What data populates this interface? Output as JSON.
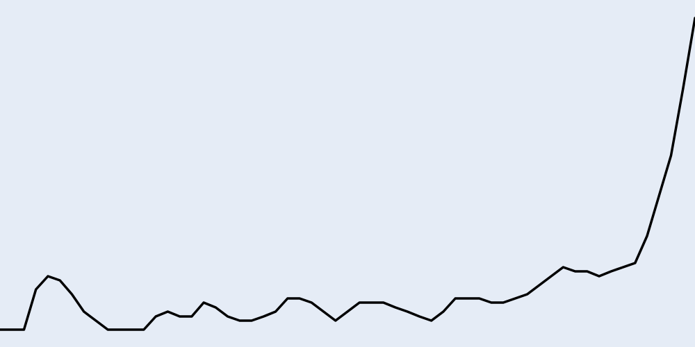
{
  "chart_data": {
    "type": "line",
    "title": "",
    "xlabel": "",
    "ylabel": "",
    "grid": false,
    "legend": false,
    "colors": {
      "background": "#e5ecf6",
      "line": "#000000"
    },
    "xlim": [
      0,
      58
    ],
    "ylim": [
      0,
      500
    ],
    "x": [
      0,
      1,
      2,
      3,
      4,
      5,
      6,
      7,
      8,
      9,
      10,
      11,
      12,
      13,
      14,
      15,
      16,
      17,
      18,
      19,
      20,
      21,
      22,
      23,
      24,
      25,
      26,
      27,
      28,
      29,
      30,
      31,
      32,
      33,
      34,
      35,
      36,
      37,
      38,
      39,
      40,
      41,
      42,
      43,
      44,
      45,
      46,
      47,
      48,
      49,
      50,
      51,
      52,
      53,
      54,
      55,
      56,
      57,
      58
    ],
    "series": [
      {
        "values": [
          25,
          25,
          25,
          83,
          102,
          96,
          76,
          51,
          38,
          25,
          25,
          25,
          25,
          44,
          51,
          44,
          44,
          64,
          57,
          44,
          38,
          38,
          44,
          51,
          70,
          70,
          64,
          51,
          38,
          51,
          64,
          64,
          64,
          57,
          51,
          44,
          38,
          51,
          70,
          70,
          70,
          64,
          64,
          70,
          76,
          89,
          102,
          115,
          109,
          109,
          102,
          109,
          115,
          121,
          160,
          218,
          276,
          372,
          474
        ]
      }
    ]
  }
}
